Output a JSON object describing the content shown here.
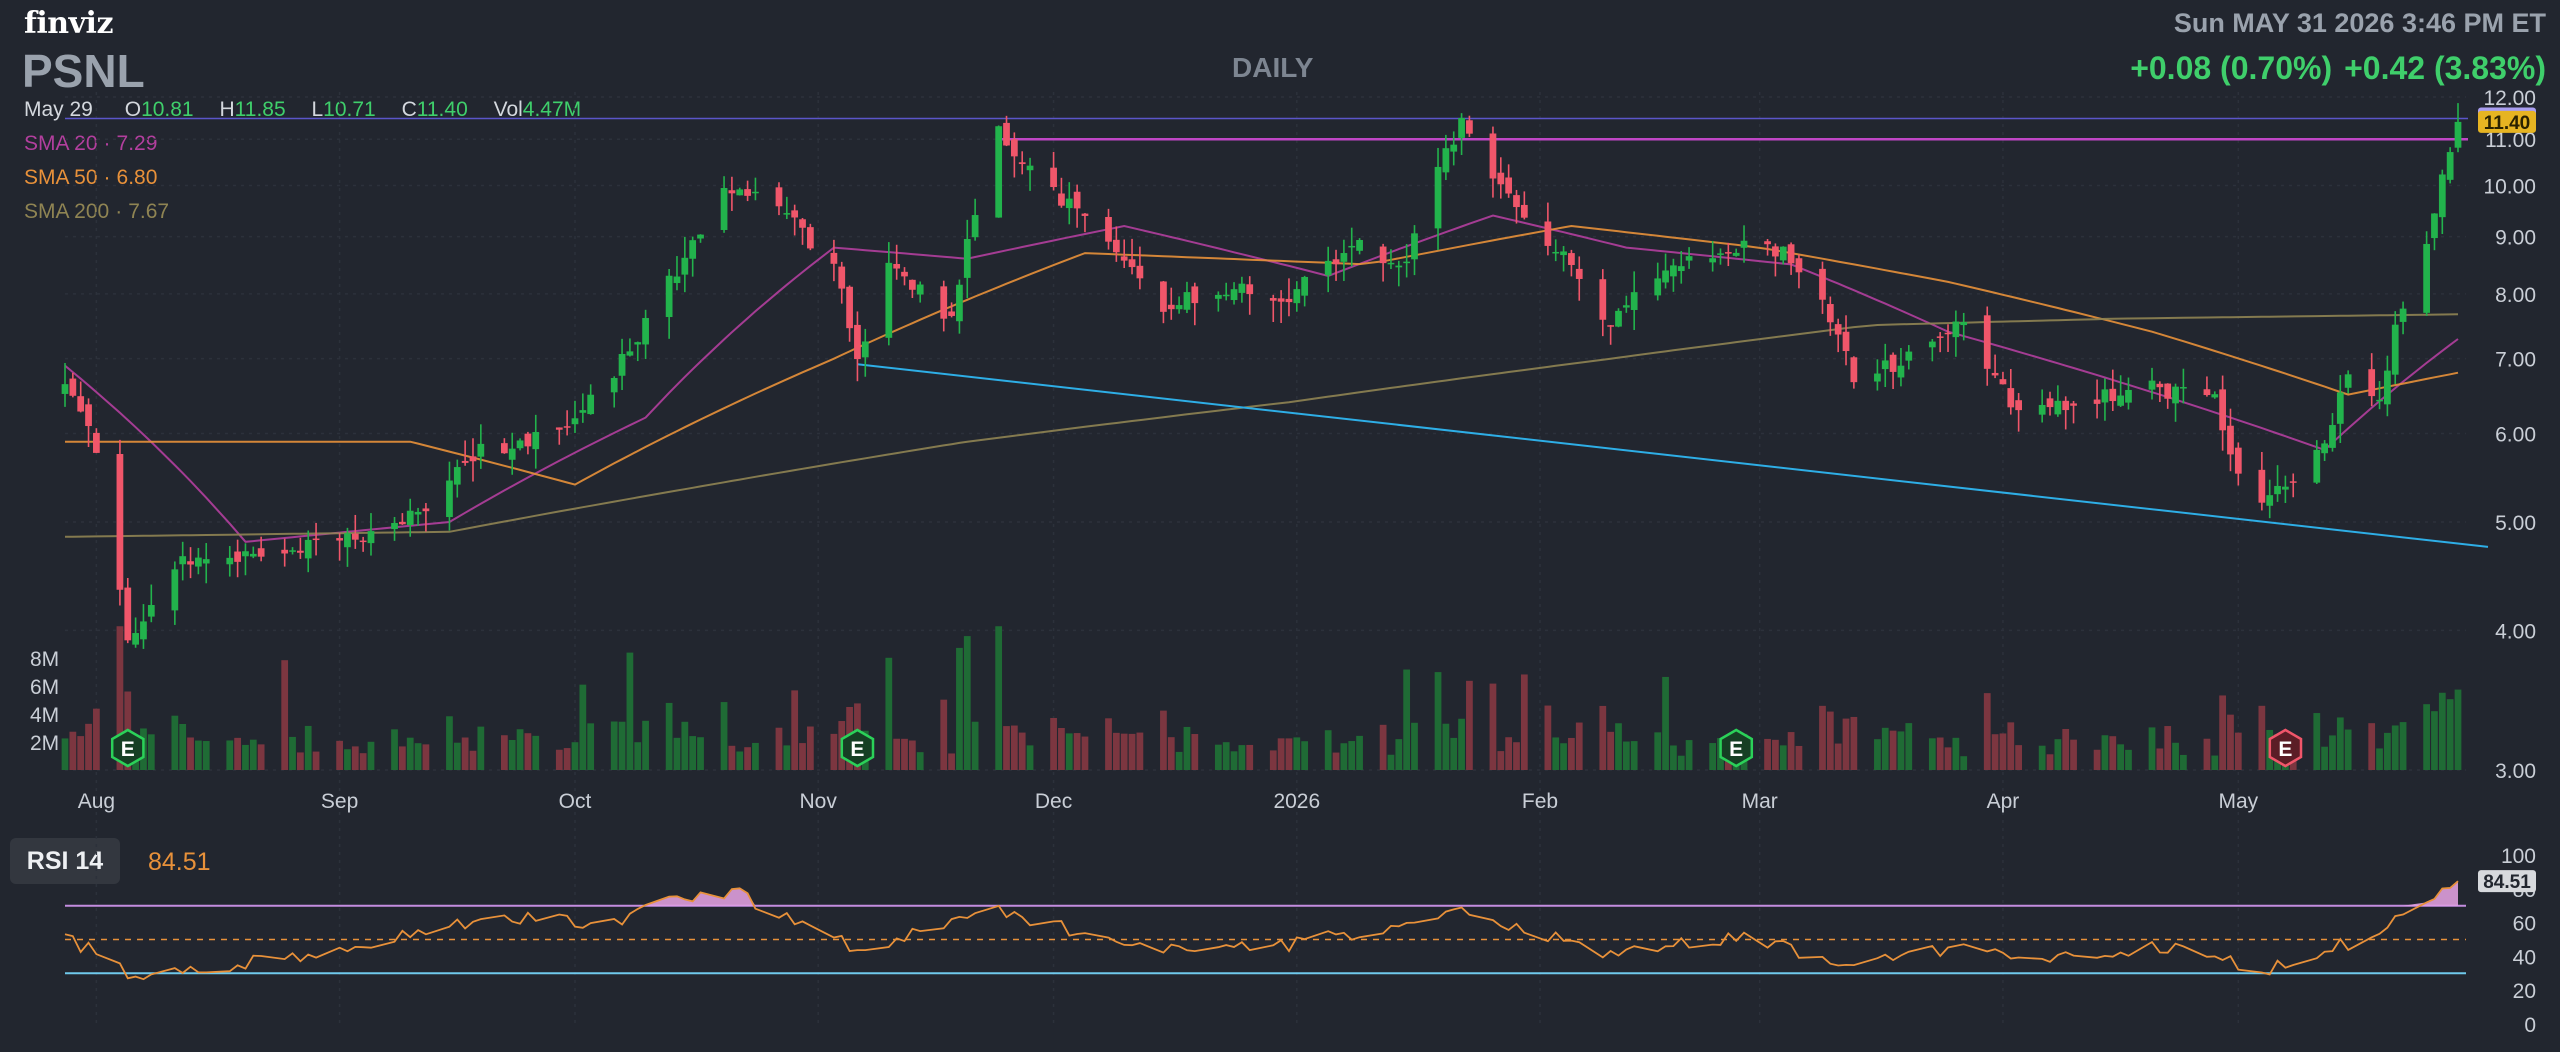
{
  "header": {
    "logo": "finviz",
    "ticker": "PSNL",
    "interval": "DAILY",
    "datetime": "Sun MAY 31 2026 3:46 PM ET",
    "change_abs": "+0.08 (0.70%)",
    "change_ext": "+0.42 (3.83%)"
  },
  "ohlc": {
    "date": "May 29",
    "open_label": "O",
    "open": "10.81",
    "high_label": "H",
    "high": "11.85",
    "low_label": "L",
    "low": "10.71",
    "close_label": "C",
    "close": "11.40",
    "vol_label": "Vol",
    "vol": "4.47M"
  },
  "sma": [
    {
      "label": "SMA 20",
      "value": "7.29",
      "color": "#b23f9e"
    },
    {
      "label": "SMA 50",
      "value": "6.80",
      "color": "#e8913a"
    },
    {
      "label": "SMA 200",
      "value": "7.67",
      "color": "#8f8453"
    }
  ],
  "colors": {
    "up": "#22b34c",
    "down": "#f0566a",
    "vol_up": "#1f6b35",
    "vol_down": "#7c3640",
    "trend_line": "#2eaee6",
    "resistance": "#c046c6",
    "price_tag_last": "#e6b422",
    "price_tag_ext": "#a99ef0"
  },
  "chart_data": [
    {
      "type": "candlestick",
      "title": "PSNL",
      "interval": "DAILY",
      "yticks": [
        "12.00",
        "11.00",
        "10.00",
        "9.00",
        "8.00",
        "7.00",
        "6.00",
        "5.00",
        "4.00",
        "3.00"
      ],
      "ylim": [
        3.0,
        12.0
      ],
      "ylog": true,
      "xticks": [
        "Aug",
        "Sep",
        "Oct",
        "Nov",
        "Dec",
        "2026",
        "Feb",
        "Mar",
        "Apr",
        "May"
      ],
      "x_range": [
        "2025-07-28",
        "2026-05-29"
      ],
      "price_tags": {
        "extended": "11.48",
        "last": "11.40"
      },
      "volume_ticks": [
        "8M",
        "6M",
        "4M",
        "2M"
      ],
      "earnings_markers": [
        {
          "label": "E",
          "date": "2025-08-05",
          "result": "beat"
        },
        {
          "label": "E",
          "date": "2025-11-06",
          "result": "beat"
        },
        {
          "label": "E",
          "date": "2026-02-26",
          "result": "beat"
        },
        {
          "label": "E",
          "date": "2026-05-07",
          "result": "miss"
        }
      ],
      "annotations": {
        "resistance": {
          "level": 11.0,
          "from": "2025-11-24",
          "to": "2026-05-29"
        },
        "upper_line": {
          "level": 11.48
        },
        "trend_line": {
          "from": [
            "2025-11-06",
            6.92
          ],
          "to": [
            "2026-05-29",
            4.75
          ]
        }
      },
      "series": [
        {
          "name": "Price",
          "key_points": [
            [
              "2025-07-28",
              6.7
            ],
            [
              "2025-08-01",
              5.8
            ],
            [
              "2025-08-05",
              3.9
            ],
            [
              "2025-08-12",
              4.65
            ],
            [
              "2025-08-25",
              4.7
            ],
            [
              "2025-09-05",
              4.85
            ],
            [
              "2025-09-12",
              5.2
            ],
            [
              "2025-09-19",
              5.8
            ],
            [
              "2025-09-30",
              6.0
            ],
            [
              "2025-10-08",
              7.1
            ],
            [
              "2025-10-15",
              8.6
            ],
            [
              "2025-10-20",
              10.0
            ],
            [
              "2025-10-27",
              9.5
            ],
            [
              "2025-11-03",
              8.5
            ],
            [
              "2025-11-06",
              7.0
            ],
            [
              "2025-11-10",
              8.5
            ],
            [
              "2025-11-18",
              7.6
            ],
            [
              "2025-11-21",
              9.5
            ],
            [
              "2025-11-24",
              11.2
            ],
            [
              "2025-12-01",
              9.8
            ],
            [
              "2025-12-08",
              9.0
            ],
            [
              "2025-12-15",
              7.8
            ],
            [
              "2025-12-22",
              8.1
            ],
            [
              "2025-12-31",
              7.9
            ],
            [
              "2026-01-08",
              8.9
            ],
            [
              "2026-01-15",
              8.5
            ],
            [
              "2026-01-22",
              11.5
            ],
            [
              "2026-01-27",
              10.0
            ],
            [
              "2026-02-04",
              8.6
            ],
            [
              "2026-02-10",
              7.5
            ],
            [
              "2026-02-17",
              8.5
            ],
            [
              "2026-02-26",
              8.8
            ],
            [
              "2026-03-04",
              8.7
            ],
            [
              "2026-03-10",
              7.6
            ],
            [
              "2026-03-13",
              6.7
            ],
            [
              "2026-03-20",
              7.0
            ],
            [
              "2026-03-27",
              7.5
            ],
            [
              "2026-04-03",
              6.2
            ],
            [
              "2026-04-10",
              6.4
            ],
            [
              "2026-04-20",
              6.6
            ],
            [
              "2026-04-28",
              6.4
            ],
            [
              "2026-05-01",
              5.5
            ],
            [
              "2026-05-05",
              5.2
            ],
            [
              "2026-05-12",
              5.9
            ],
            [
              "2026-05-15",
              6.7
            ],
            [
              "2026-05-19",
              6.4
            ],
            [
              "2026-05-21",
              7.5
            ],
            [
              "2026-05-26",
              9.4
            ],
            [
              "2026-05-28",
              10.9
            ],
            [
              "2026-05-29",
              11.4
            ]
          ]
        },
        {
          "name": "SMA 20",
          "key_points": [
            [
              "2025-07-28",
              6.9
            ],
            [
              "2025-08-20",
              4.8
            ],
            [
              "2025-09-15",
              5.0
            ],
            [
              "2025-10-10",
              6.2
            ],
            [
              "2025-11-03",
              8.8
            ],
            [
              "2025-11-20",
              8.6
            ],
            [
              "2025-12-10",
              9.2
            ],
            [
              "2026-01-05",
              8.3
            ],
            [
              "2026-01-26",
              9.4
            ],
            [
              "2026-02-12",
              8.8
            ],
            [
              "2026-03-05",
              8.5
            ],
            [
              "2026-03-25",
              7.4
            ],
            [
              "2026-04-15",
              6.7
            ],
            [
              "2026-05-12",
              5.8
            ],
            [
              "2026-05-29",
              7.29
            ]
          ]
        },
        {
          "name": "SMA 50",
          "key_points": [
            [
              "2025-07-28",
              5.9
            ],
            [
              "2025-09-10",
              5.9
            ],
            [
              "2025-10-01",
              5.4
            ],
            [
              "2025-11-03",
              7.0
            ],
            [
              "2025-12-05",
              8.7
            ],
            [
              "2026-01-10",
              8.5
            ],
            [
              "2026-02-05",
              9.2
            ],
            [
              "2026-03-01",
              8.8
            ],
            [
              "2026-03-25",
              8.2
            ],
            [
              "2026-04-20",
              7.4
            ],
            [
              "2026-05-15",
              6.5
            ],
            [
              "2026-05-29",
              6.8
            ]
          ]
        },
        {
          "name": "SMA 200",
          "key_points": [
            [
              "2025-07-28",
              4.85
            ],
            [
              "2025-09-15",
              4.9
            ],
            [
              "2025-10-15",
              5.35
            ],
            [
              "2025-11-20",
              5.9
            ],
            [
              "2025-12-31",
              6.4
            ],
            [
              "2026-02-10",
              7.0
            ],
            [
              "2026-03-15",
              7.5
            ],
            [
              "2026-04-15",
              7.6
            ],
            [
              "2026-05-29",
              7.67
            ]
          ]
        }
      ]
    },
    {
      "type": "line",
      "title": "RSI 14",
      "value": "84.51",
      "yticks": [
        "100",
        "80",
        "60",
        "40",
        "20",
        "0"
      ],
      "ylim": [
        0,
        100
      ],
      "bands": {
        "overbought": 70,
        "mid": 50,
        "oversold": 30
      },
      "series": [
        {
          "name": "RSI 14",
          "key_points": [
            [
              "2025-07-28",
              52
            ],
            [
              "2025-08-05",
              30
            ],
            [
              "2025-08-12",
              29
            ],
            [
              "2025-09-05",
              48
            ],
            [
              "2025-09-19",
              62
            ],
            [
              "2025-10-06",
              60
            ],
            [
              "2025-10-15",
              75
            ],
            [
              "2025-10-21",
              78
            ],
            [
              "2025-10-24",
              72
            ],
            [
              "2025-11-06",
              44
            ],
            [
              "2025-11-12",
              52
            ],
            [
              "2025-11-24",
              67
            ],
            [
              "2025-12-12",
              44
            ],
            [
              "2025-12-31",
              46
            ],
            [
              "2026-01-22",
              67
            ],
            [
              "2026-02-10",
              40
            ],
            [
              "2026-02-26",
              52
            ],
            [
              "2026-03-13",
              35
            ],
            [
              "2026-03-25",
              45
            ],
            [
              "2026-04-05",
              36
            ],
            [
              "2026-04-20",
              46
            ],
            [
              "2026-05-05",
              32
            ],
            [
              "2026-05-15",
              48
            ],
            [
              "2026-05-22",
              62
            ],
            [
              "2026-05-29",
              84.51
            ]
          ]
        }
      ]
    }
  ]
}
